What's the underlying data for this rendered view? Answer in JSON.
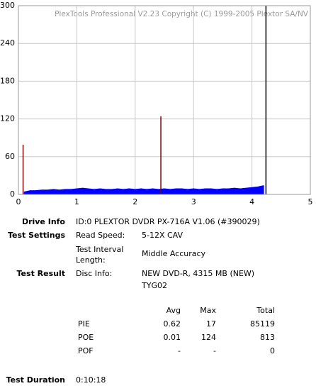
{
  "chart_data": {
    "type": "area",
    "title": "PlexTools Professional V2.23 Copyright (C) 1999-2005 Plextor SA/NV",
    "x": [
      0.1,
      0.2,
      0.3,
      0.4,
      0.5,
      0.6,
      0.7,
      0.8,
      0.9,
      1.0,
      1.1,
      1.2,
      1.3,
      1.4,
      1.5,
      1.6,
      1.7,
      1.8,
      1.9,
      2.0,
      2.1,
      2.2,
      2.3,
      2.4,
      2.5,
      2.6,
      2.7,
      2.8,
      2.9,
      3.0,
      3.1,
      3.2,
      3.3,
      3.4,
      3.5,
      3.6,
      3.7,
      3.8,
      3.9,
      4.0,
      4.1,
      4.2
    ],
    "series": [
      {
        "name": "PIE",
        "color": "#0000ff",
        "values": [
          4,
          6,
          6,
          7,
          7,
          8,
          7,
          8,
          8,
          9,
          10,
          9,
          8,
          9,
          8,
          8,
          9,
          8,
          9,
          8,
          9,
          8,
          9,
          8,
          9,
          8,
          9,
          9,
          8,
          9,
          8,
          9,
          9,
          8,
          9,
          9,
          10,
          9,
          10,
          11,
          12,
          14
        ]
      }
    ],
    "spikes": {
      "name": "POE",
      "color": "#800000",
      "x": [
        0.08,
        2.44
      ],
      "values": [
        79,
        124
      ]
    },
    "end_marker_x": 4.24,
    "xlim": [
      0,
      5
    ],
    "xticks": [
      0,
      1,
      2,
      3,
      4,
      5
    ],
    "ylim": [
      0,
      300
    ],
    "yticks": [
      0,
      60,
      120,
      180,
      240,
      300
    ],
    "grid": true
  },
  "info": {
    "drive_info_label": "Drive Info",
    "drive_info": "ID:0 PLEXTOR DVDR PX-716A V1.06 (#390029)",
    "test_settings_label": "Test Settings",
    "read_speed_label": "Read Speed:",
    "read_speed": "5-12X CAV",
    "interval_label": [
      "Test Interval",
      "Length:"
    ],
    "interval": "Middle Accuracy",
    "test_result_label": "Test Result",
    "disc_info_label": "Disc Info:",
    "disc_info": "NEW DVD-R, 4315 MB (NEW)",
    "disc_id": "TYG02",
    "stats_header": [
      "Avg",
      "Max",
      "Total"
    ],
    "stats_rows": [
      [
        "PIE",
        "0.62",
        "17",
        "85119"
      ],
      [
        "POE",
        "0.01",
        "124",
        "813"
      ],
      [
        "POF",
        "-",
        "-",
        "0"
      ]
    ],
    "duration_label": "Test Duration",
    "duration": "0:10:18"
  }
}
